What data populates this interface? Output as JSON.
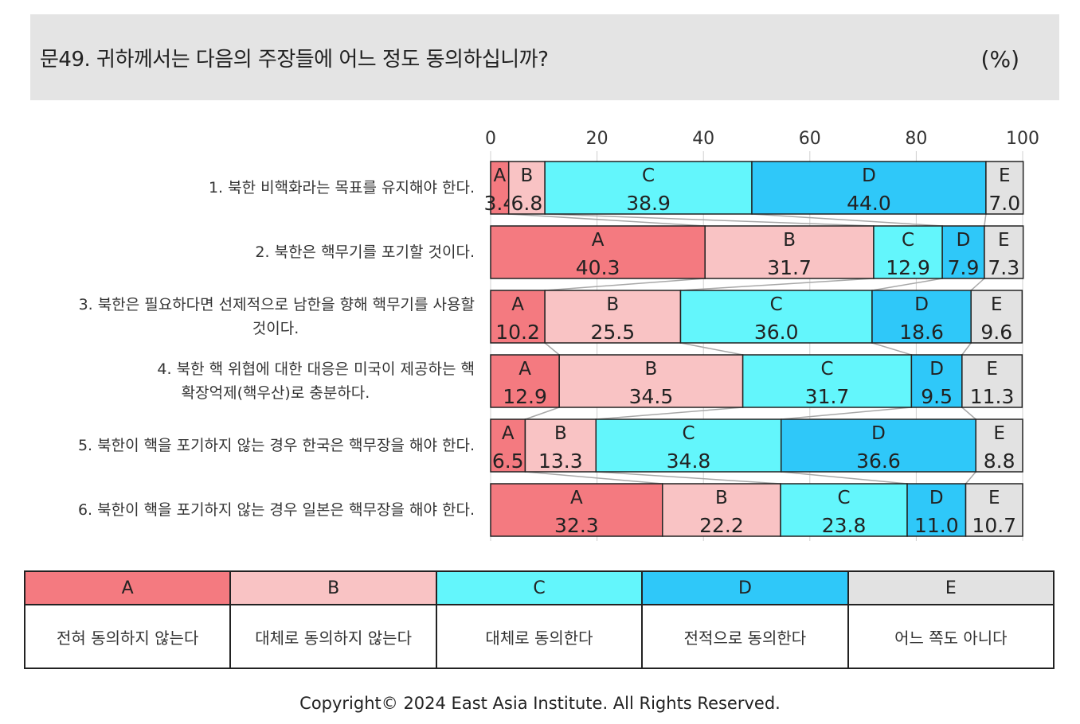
{
  "header": {
    "title": "문49. 귀하께서는 다음의 주장들에 어느 정도 동의하십니까?",
    "unit": "(%)"
  },
  "chart_data": {
    "type": "bar",
    "orientation": "horizontal",
    "stacked": true,
    "x_ticks": [
      "0",
      "20",
      "40",
      "60",
      "80",
      "100"
    ],
    "xlim": [
      0,
      100
    ],
    "categories": [
      "1. 북한 비핵화라는 목표를 유지해야 한다.",
      "2. 북한은 핵무기를 포기할 것이다.",
      "3. 북한은 필요하다면 선제적으로 남한을 향해 핵무기를 사용할|것이다.",
      "4. 북한 핵 위협에 대한 대응은 미국이 제공하는 핵|확장억제(핵우산)로 충분하다.",
      "5. 북한이 핵을 포기하지 않는 경우 한국은 핵무장을 해야 한다.",
      "6. 북한이 핵을 포기하지 않는 경우 일본은 핵무장을 해야 한다."
    ],
    "series": [
      {
        "name": "A",
        "color": "#f47a80",
        "values": [
          3.4,
          40.3,
          10.2,
          12.9,
          6.5,
          32.3
        ]
      },
      {
        "name": "B",
        "color": "#f9c3c4",
        "values": [
          6.8,
          31.7,
          25.5,
          34.5,
          13.3,
          22.2
        ]
      },
      {
        "name": "C",
        "color": "#63f6fc",
        "values": [
          38.9,
          12.9,
          36.0,
          31.7,
          34.8,
          23.8
        ]
      },
      {
        "name": "D",
        "color": "#2fc8f9",
        "values": [
          44.0,
          7.9,
          18.6,
          9.5,
          36.6,
          11.0
        ]
      },
      {
        "name": "E",
        "color": "#e2e2e2",
        "values": [
          7.0,
          7.3,
          9.6,
          11.3,
          8.8,
          10.7
        ]
      }
    ],
    "value_labels": [
      [
        "3.4",
        "6.8",
        "38.9",
        "44.0",
        "7.0"
      ],
      [
        "40.3",
        "31.7",
        "12.9",
        "7.9",
        "7.3"
      ],
      [
        "10.2",
        "25.5",
        "36.0",
        "18.6",
        "9.6"
      ],
      [
        "12.9",
        "34.5",
        "31.7",
        "9.5",
        "11.3"
      ],
      [
        "6.5",
        "13.3",
        "34.8",
        "36.6",
        "8.8"
      ],
      [
        "32.3",
        "22.2",
        "23.8",
        "11.0",
        "10.7"
      ]
    ],
    "legend_position": "bottom",
    "grid": true
  },
  "legend": [
    {
      "key": "A",
      "color": "#f47a80",
      "label": "전혀 동의하지 않는다"
    },
    {
      "key": "B",
      "color": "#f9c3c4",
      "label": "대체로 동의하지 않는다"
    },
    {
      "key": "C",
      "color": "#63f6fc",
      "label": "대체로 동의한다"
    },
    {
      "key": "D",
      "color": "#2fc8f9",
      "label": "전적으로 동의한다"
    },
    {
      "key": "E",
      "color": "#e2e2e2",
      "label": "어느 쪽도 아니다"
    }
  ],
  "footer": {
    "copyright": "Copyright© 2024 East Asia Institute. All Rights Reserved."
  }
}
